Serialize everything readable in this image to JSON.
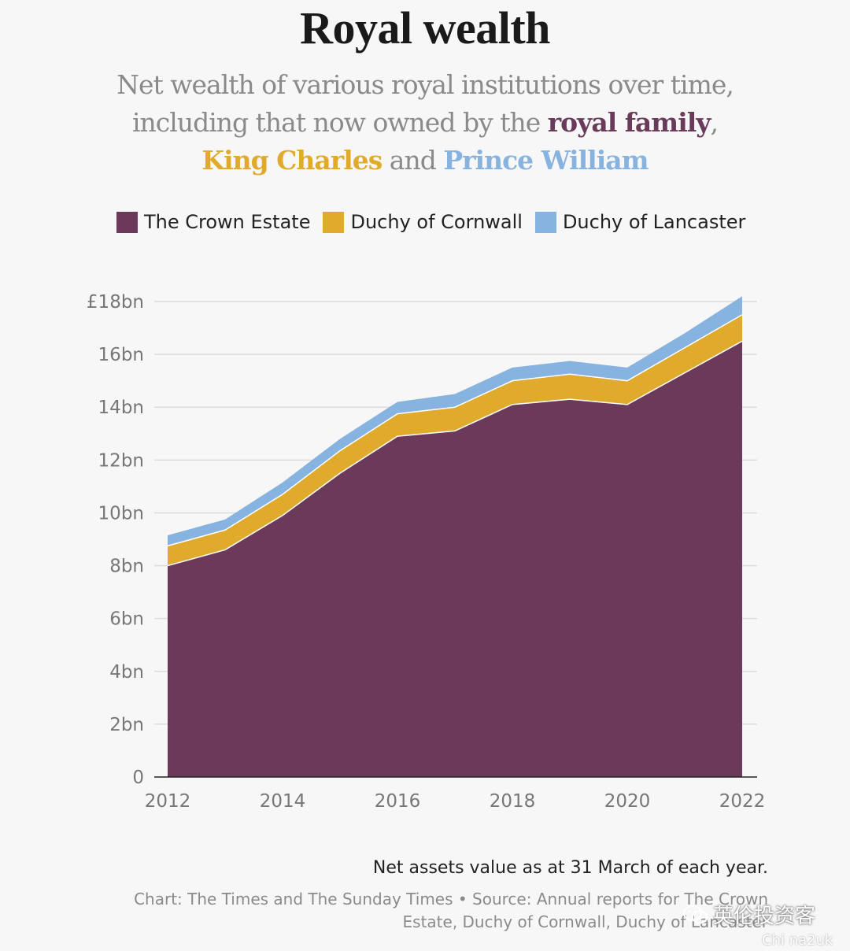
{
  "title": "Royal wealth",
  "subtitle": {
    "part1": "Net wealth of various royal institutions over time, including that now owned by the ",
    "royal_family": "royal family",
    "sep": ", ",
    "king_charles": "King Charles",
    "and": " and ",
    "prince_william": "Prince William"
  },
  "colors": {
    "crown_estate": "#6b3a5a",
    "duchy_cornwall": "#e0aa2c",
    "duchy_lancaster": "#87b3e0",
    "background": "#f7f7f7"
  },
  "chart_data": {
    "type": "area",
    "stacked": true,
    "x": [
      2012,
      2013,
      2014,
      2015,
      2016,
      2017,
      2018,
      2019,
      2020,
      2021,
      2022
    ],
    "series": [
      {
        "name": "The Crown Estate",
        "values": [
          8.0,
          8.6,
          9.9,
          11.5,
          12.9,
          13.1,
          14.1,
          14.3,
          14.1,
          15.3,
          16.5
        ]
      },
      {
        "name": "Duchy of Cornwall",
        "values": [
          0.75,
          0.75,
          0.8,
          0.85,
          0.85,
          0.9,
          0.9,
          0.95,
          0.9,
          0.95,
          1.0
        ]
      },
      {
        "name": "Duchy of Lancaster",
        "values": [
          0.4,
          0.4,
          0.45,
          0.45,
          0.45,
          0.5,
          0.5,
          0.5,
          0.5,
          0.55,
          0.7
        ]
      }
    ],
    "ylim": [
      0,
      18
    ],
    "yticks": [
      {
        "value": 0,
        "label": "0"
      },
      {
        "value": 2,
        "label": "2bn"
      },
      {
        "value": 4,
        "label": "4bn"
      },
      {
        "value": 6,
        "label": "6bn"
      },
      {
        "value": 8,
        "label": "8bn"
      },
      {
        "value": 10,
        "label": "10bn"
      },
      {
        "value": 12,
        "label": "12bn"
      },
      {
        "value": 14,
        "label": "14bn"
      },
      {
        "value": 16,
        "label": "16bn"
      },
      {
        "value": 18,
        "label": "£18bn"
      }
    ],
    "xticks": [
      {
        "value": 2012,
        "label": "2012"
      },
      {
        "value": 2014,
        "label": "2014"
      },
      {
        "value": 2016,
        "label": "2016"
      },
      {
        "value": 2018,
        "label": "2018"
      },
      {
        "value": 2020,
        "label": "2020"
      },
      {
        "value": 2022,
        "label": "2022"
      }
    ],
    "grid": true,
    "legend_position": "top"
  },
  "legend": {
    "crown_estate": "The Crown Estate",
    "duchy_cornwall": "Duchy of Cornwall",
    "duchy_lancaster": "Duchy of Lancaster"
  },
  "note": "Net assets value as at 31 March of each year.",
  "credit": "Chart: The Times and The Sunday Times • Source: Annual reports for The Crown Estate, Duchy of Cornwall, Duchy of Lancaster",
  "watermark": {
    "text": "英伦投资客",
    "sub": "Chi na2uk",
    "icon": "wechat-icon"
  }
}
